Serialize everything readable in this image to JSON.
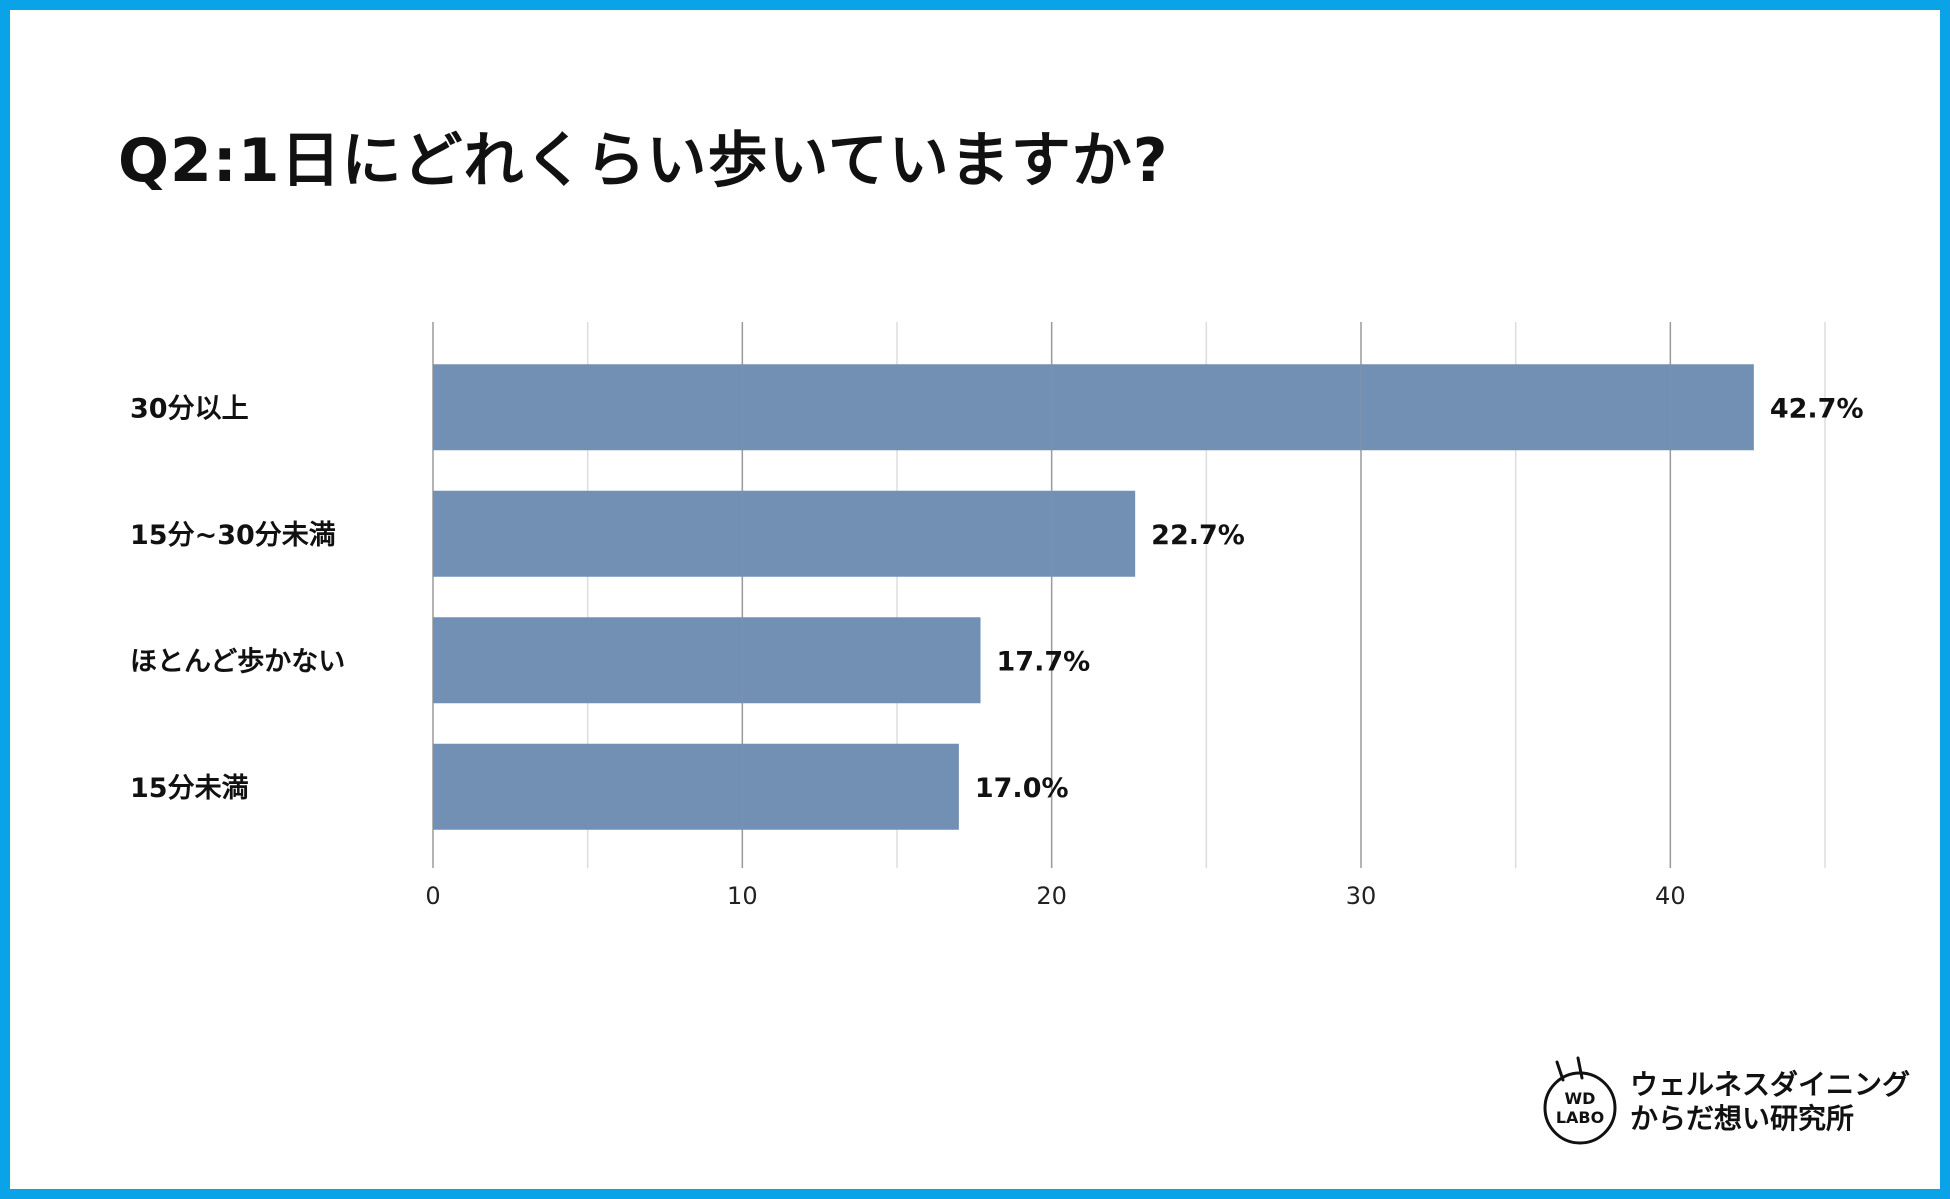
{
  "chart_data": {
    "type": "bar",
    "orientation": "horizontal",
    "title": "Q2:1日にどれくらい歩いていますか?",
    "categories": [
      "30分以上",
      "15分~30分未満",
      "ほとんど歩かない",
      "15分未満"
    ],
    "values": [
      42.7,
      22.7,
      17.7,
      17.0
    ],
    "value_labels": [
      "42.7%",
      "22.7%",
      "17.7%",
      "17.0%"
    ],
    "xlim": [
      0,
      45
    ],
    "xticks": [
      0,
      10,
      20,
      30,
      40
    ],
    "xtick_labels": [
      "0",
      "10",
      "20",
      "30",
      "40"
    ],
    "xlabel": "",
    "ylabel": "",
    "grid": true,
    "bar_color": "#7290b4"
  },
  "colors": {
    "frame": "#0aa3e8",
    "bar": "#7290b4",
    "gridline_major": "#9a9a9a",
    "gridline_minor": "#dddddd"
  },
  "logo": {
    "badge_line1": "WD",
    "badge_line2": "LABO",
    "line1": "ウェルネスダイニング",
    "line2": "からだ想い研究所"
  }
}
